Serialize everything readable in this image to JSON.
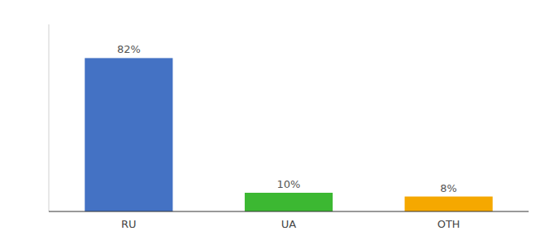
{
  "chart_data": {
    "type": "bar",
    "categories": [
      "RU",
      "UA",
      "OTH"
    ],
    "values": [
      82,
      10,
      8
    ],
    "value_labels": [
      "82%",
      "10%",
      "8%"
    ],
    "colors": [
      "#4472c4",
      "#3cb832",
      "#f5a800"
    ],
    "ylim": [
      0,
      100
    ],
    "grid": false,
    "data_labels": true,
    "tick_labels": "x"
  }
}
